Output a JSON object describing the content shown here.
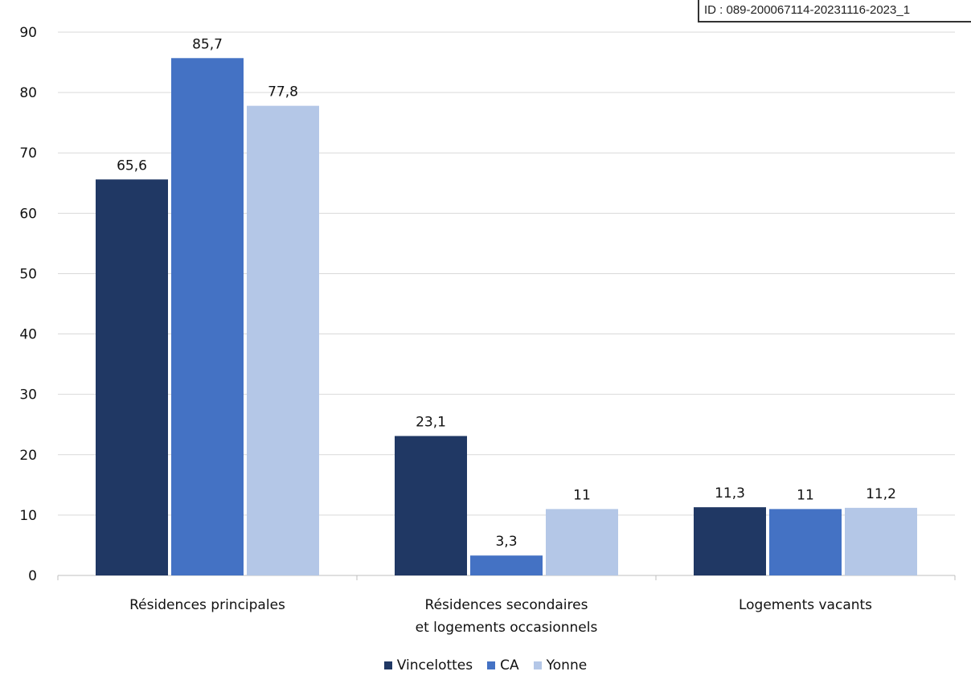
{
  "id_label": "ID : 089-200067114-20231116-2023_1",
  "chart_data": {
    "type": "bar",
    "title": "",
    "xlabel": "",
    "ylabel": "",
    "categories": [
      [
        "Résidences principales"
      ],
      [
        "Résidences secondaires",
        "et logements occasionnels"
      ],
      [
        "Logements vacants"
      ]
    ],
    "series": [
      {
        "name": "Vincelottes",
        "color": "#203864",
        "values": [
          65.6,
          23.1,
          11.3
        ],
        "labels": [
          "65,6",
          "23,1",
          "11,3"
        ]
      },
      {
        "name": "CA",
        "color": "#4472c4",
        "values": [
          85.7,
          3.3,
          11
        ],
        "labels": [
          "85,7",
          "3,3",
          "11"
        ]
      },
      {
        "name": "Yonne",
        "color": "#b4c7e7",
        "values": [
          77.8,
          11,
          11.2
        ],
        "labels": [
          "77,8",
          "11",
          "11,2"
        ]
      }
    ],
    "ylim": [
      0,
      90
    ],
    "yticks": [
      0,
      10,
      20,
      30,
      40,
      50,
      60,
      70,
      80,
      90
    ],
    "grid": true,
    "legend_position": "bottom"
  }
}
